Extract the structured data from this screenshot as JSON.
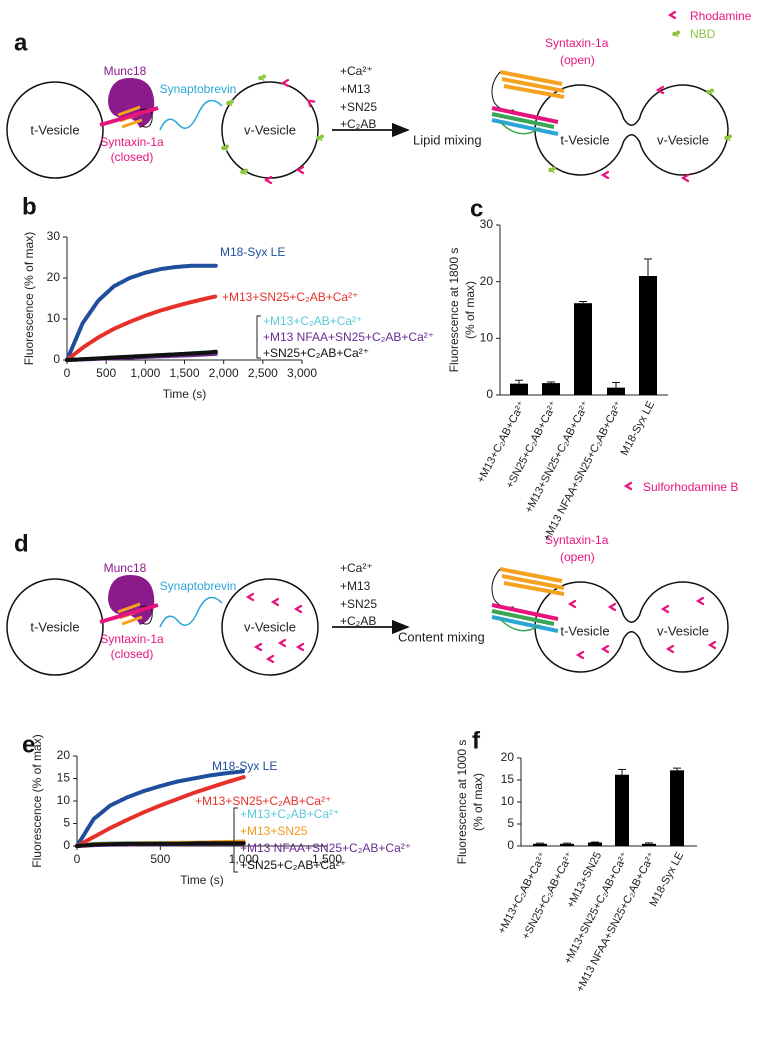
{
  "diagrams": [
    {
      "panel": "a",
      "t_vesicle": "t-Vesicle",
      "munc18": "Munc18",
      "synaptobrevin": "Synaptobrevin",
      "v_vesicle": "v-Vesicle",
      "syntaxin_closed": [
        "Syntaxin-1a",
        "(closed)"
      ],
      "conditions": [
        "+Ca²⁺",
        "+M13",
        "+SN25",
        "+C₂AB"
      ],
      "result": "Lipid mixing",
      "syntaxin_open": [
        "Syntaxin-1a",
        "(open)"
      ],
      "fused_t": "t-Vesicle",
      "fused_v": "v-Vesicle",
      "legend": [
        "Rhodamine",
        "NBD"
      ]
    },
    {
      "panel": "d",
      "t_vesicle": "t-Vesicle",
      "munc18": "Munc18",
      "synaptobrevin": "Synaptobrevin",
      "v_vesicle": "v-Vesicle",
      "syntaxin_closed": [
        "Syntaxin-1a",
        "(closed)"
      ],
      "conditions": [
        "+Ca²⁺",
        "+M13",
        "+SN25",
        "+C₂AB"
      ],
      "result": "Content mixing",
      "syntaxin_open": [
        "Syntaxin-1a",
        "(open)"
      ],
      "fused_t": "t-Vesicle",
      "fused_v": "v-Vesicle",
      "legend": [
        "Sulforhodamine B"
      ]
    }
  ],
  "chart_data": [
    {
      "panel": "b",
      "type": "line",
      "ylabel": "Fluorescence (% of max)",
      "xlabel": "Time (s)",
      "x": [
        0,
        200,
        400,
        600,
        800,
        1000,
        1200,
        1400,
        1600,
        1800,
        1900
      ],
      "xlim": [
        0,
        3000
      ],
      "xticks": [
        0,
        500,
        {
          "value": 1000,
          "label": "1,000"
        },
        {
          "value": 1500,
          "label": "1,500"
        },
        {
          "value": 2000,
          "label": "2,000"
        },
        {
          "value": 2500,
          "label": "2,500"
        },
        {
          "value": 3000,
          "label": "3,000"
        }
      ],
      "ylim": [
        0,
        30
      ],
      "yticks": [
        0,
        10,
        20,
        30
      ],
      "series": [
        {
          "name": "M18-Syx LE",
          "color": "#1f4e9c",
          "values": [
            0,
            9,
            14.5,
            18,
            20,
            21.3,
            22.2,
            22.7,
            23,
            23,
            23
          ]
        },
        {
          "name": "+M13+SN25+C₂AB+Ca²⁺",
          "color": "#e8302a",
          "values": [
            0,
            3,
            5.5,
            7.6,
            9.3,
            10.8,
            12.1,
            13.2,
            14.2,
            15.1,
            15.5
          ]
        },
        {
          "name": "+M13+C₂AB+Ca²⁺",
          "color": "#5bc8d8",
          "values": [
            0,
            0.2,
            0.4,
            0.6,
            0.8,
            1,
            1.2,
            1.4,
            1.6,
            1.9,
            2
          ]
        },
        {
          "name": "+M13 NFAA+SN25+C₂AB+Ca²⁺",
          "color": "#6a2c91",
          "values": [
            0,
            0.15,
            0.3,
            0.45,
            0.6,
            0.75,
            0.9,
            1.05,
            1.2,
            1.4,
            1.5
          ]
        },
        {
          "name": "+SN25+C₂AB+Ca²⁺",
          "color": "#111111",
          "values": [
            0,
            0.2,
            0.4,
            0.6,
            0.8,
            1,
            1.2,
            1.4,
            1.6,
            1.8,
            2
          ]
        }
      ]
    },
    {
      "panel": "c",
      "type": "bar",
      "ylabel": [
        "Fluorescence at 1800 s",
        "(% of max)"
      ],
      "color": "#000000",
      "categories": [
        "+M13+C₂AB+Ca²⁺",
        "+SN25+C₂AB+Ca²⁺",
        "+M13+SN25+C₂AB+Ca²⁺",
        "+M13 NFAA+SN25+C₂AB+Ca²⁺",
        "M18-Syx LE"
      ],
      "values": [
        2,
        2.1,
        16.2,
        1.3,
        21
      ],
      "errors": [
        0.6,
        0.2,
        0.3,
        0.9,
        3
      ],
      "ylim": [
        0,
        30
      ],
      "yticks": [
        0,
        10,
        20,
        30
      ]
    },
    {
      "panel": "e",
      "type": "line",
      "ylabel": "Fluorescence (% of max)",
      "xlabel": "Time (s)",
      "x": [
        0,
        100,
        200,
        300,
        400,
        500,
        600,
        700,
        800,
        900,
        1000
      ],
      "xlim": [
        0,
        1500
      ],
      "xticks": [
        0,
        500,
        {
          "value": 1000,
          "label": "1,000"
        },
        {
          "value": 1500,
          "label": "1,500"
        }
      ],
      "ylim": [
        0,
        20
      ],
      "yticks": [
        0,
        5,
        10,
        15,
        20
      ],
      "series": [
        {
          "name": "M18-Syx LE",
          "color": "#1f4e9c",
          "values": [
            0,
            6,
            9,
            10.8,
            12.2,
            13.3,
            14.3,
            15,
            15.7,
            16.2,
            16.6
          ]
        },
        {
          "name": "+M13+SN25+C₂AB+Ca²⁺",
          "color": "#e8302a",
          "values": [
            0,
            2,
            4,
            5.8,
            7.5,
            9,
            10.4,
            11.8,
            13,
            14.2,
            15.3
          ]
        },
        {
          "name": "+M13+C₂AB+Ca²⁺",
          "color": "#5bc8d8",
          "values": [
            0,
            0.5,
            0.6,
            0.6,
            0.6,
            0.7,
            0.7,
            0.7,
            0.8,
            0.8,
            0.8
          ]
        },
        {
          "name": "+M13+SN25",
          "color": "#f39a1e",
          "values": [
            0,
            0.4,
            0.5,
            0.5,
            0.6,
            0.6,
            0.7,
            0.7,
            0.8,
            0.9,
            1
          ]
        },
        {
          "name": "+M13 NFAA+SN25+C₂AB+Ca²⁺",
          "color": "#6a2c91",
          "values": [
            0,
            0.2,
            0.3,
            0.3,
            0.4,
            0.4,
            0.4,
            0.5,
            0.5,
            0.5,
            0.6
          ]
        },
        {
          "name": "+SN25+C₂AB+Ca²⁺",
          "color": "#111111",
          "values": [
            0,
            0.3,
            0.4,
            0.5,
            0.5,
            0.5,
            0.5,
            0.6,
            0.6,
            0.6,
            0.6
          ]
        }
      ]
    },
    {
      "panel": "f",
      "type": "bar",
      "ylabel": [
        "Fluorescence at 1000 s",
        "(% of max)"
      ],
      "color": "#000000",
      "categories": [
        "+M13+C₂AB+Ca²⁺",
        "+SN25+C₂AB+Ca²⁺",
        "+M13+SN25",
        "+M13+SN25+C₂AB+Ca²⁺",
        "+M13 NFAA+SN25+C₂AB+Ca²⁺",
        "M18-Syx LE"
      ],
      "values": [
        0.5,
        0.5,
        0.8,
        16.2,
        0.5,
        17.2
      ],
      "errors": [
        0.15,
        0.15,
        0.1,
        1.2,
        0.2,
        0.5
      ],
      "ylim": [
        0,
        20
      ],
      "yticks": [
        0,
        5,
        10,
        15,
        20
      ]
    }
  ]
}
